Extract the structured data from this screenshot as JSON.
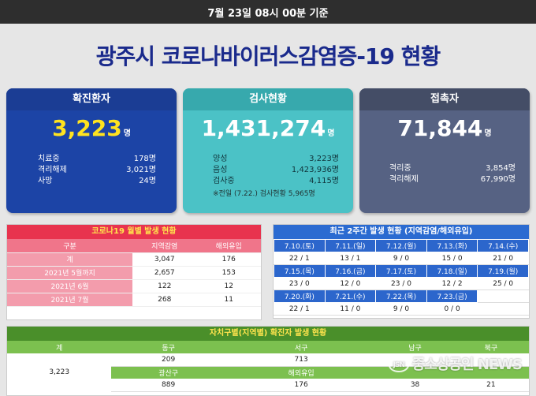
{
  "topbar": {
    "date": "7월 23일 08시 00분 기준"
  },
  "title": "광주시 코로나바이러스감염증-19 현황",
  "confirmed": {
    "label": "확진환자",
    "value": "3,223",
    "unit": "명",
    "rows": [
      {
        "k": "치료중",
        "v": "178명"
      },
      {
        "k": "격리해제",
        "v": "3,021명"
      },
      {
        "k": "사망",
        "v": "24명"
      }
    ]
  },
  "tests": {
    "label": "검사현황",
    "value": "1,431,274",
    "unit": "명",
    "rows": [
      {
        "k": "양성",
        "v": "3,223명"
      },
      {
        "k": "음성",
        "v": "1,423,936명"
      },
      {
        "k": "검사중",
        "v": "4,115명"
      }
    ],
    "note": "※전일 (7.22.) 검사현황 5,965명"
  },
  "contacts": {
    "label": "접촉자",
    "value": "71,844",
    "unit": "명",
    "rows": [
      {
        "k": "격리중",
        "v": "3,854명"
      },
      {
        "k": "격리해제",
        "v": "67,990명"
      }
    ]
  },
  "monthly": {
    "title": "코로나19 월별 발생 현황",
    "headers": [
      "구분",
      "지역감염",
      "해외유입"
    ],
    "rows": [
      [
        "계",
        "3,047",
        "176"
      ],
      [
        "2021년 5월까지",
        "2,657",
        "153"
      ],
      [
        "2021년 6월",
        "122",
        "12"
      ],
      [
        "2021년 7월",
        "268",
        "11"
      ]
    ]
  },
  "recent": {
    "title": "최근 2주간 발생 현황 (지역감염/해외유입)",
    "weeks": [
      {
        "dates": [
          "7.10.(토)",
          "7.11.(일)",
          "7.12.(월)",
          "7.13.(화)",
          "7.14.(수)"
        ],
        "vals": [
          "22 / 1",
          "13 / 1",
          "9 / 0",
          "15 / 0",
          "21 / 0"
        ]
      },
      {
        "dates": [
          "7.15.(목)",
          "7.16.(금)",
          "7.17.(토)",
          "7.18.(일)",
          "7.19.(월)"
        ],
        "vals": [
          "23 / 0",
          "12 / 0",
          "23 / 0",
          "12 / 2",
          "25 / 0"
        ]
      },
      {
        "dates": [
          "7.20.(화)",
          "7.21.(수)",
          "7.22.(목)",
          "7.23.(금)",
          ""
        ],
        "vals": [
          "22 / 1",
          "11 / 0",
          "9 / 0",
          "0 / 0",
          ""
        ]
      }
    ]
  },
  "district": {
    "title": "자치구별(지역별) 확진자 발생 현황",
    "total_label": "계",
    "total": "3,223",
    "row1_headers": [
      "동구",
      "서구",
      "남구",
      "북구"
    ],
    "row1_values": [
      "209",
      "713",
      "",
      ""
    ],
    "row2_headers": [
      "광산구",
      "해외유입",
      "",
      ""
    ],
    "row2_values": [
      "889",
      "176",
      "38",
      "21"
    ]
  },
  "watermark": {
    "logo": "JSN",
    "text": "중소상공인 NEWS"
  }
}
